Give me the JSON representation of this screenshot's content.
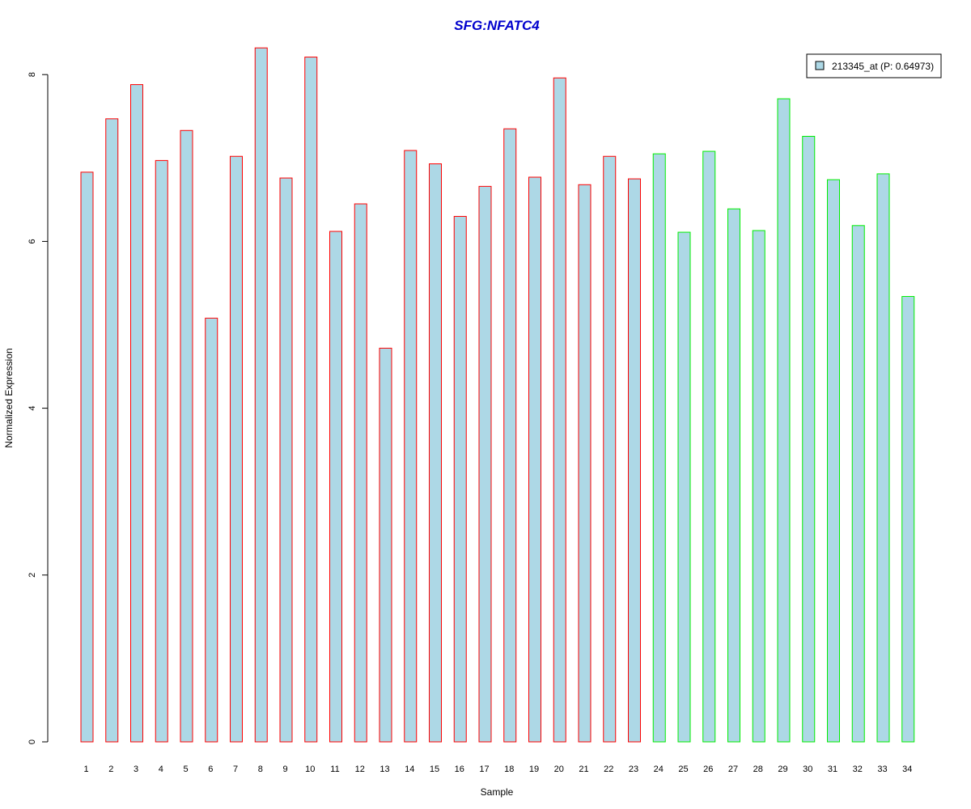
{
  "chart_data": {
    "type": "bar",
    "title": "SFG:NFATC4",
    "xlabel": "Sample",
    "ylabel": "Normalized Expression",
    "ylim": [
      0,
      8.5
    ],
    "yticks": [
      "0",
      "2",
      "4",
      "6",
      "8"
    ],
    "grid": false,
    "categories": [
      "1",
      "2",
      "3",
      "4",
      "5",
      "6",
      "7",
      "8",
      "9",
      "10",
      "11",
      "12",
      "13",
      "14",
      "15",
      "16",
      "17",
      "18",
      "19",
      "20",
      "21",
      "22",
      "23",
      "24",
      "25",
      "26",
      "27",
      "28",
      "29",
      "30",
      "31",
      "32",
      "33",
      "34"
    ],
    "series": [
      {
        "name": "213345_at (P: 0.64973)",
        "values": [
          6.83,
          7.47,
          7.88,
          6.97,
          7.33,
          5.08,
          7.02,
          8.32,
          6.76,
          8.21,
          6.12,
          6.45,
          4.72,
          7.09,
          6.93,
          6.3,
          6.66,
          7.35,
          6.77,
          7.96,
          6.68,
          7.02,
          6.75,
          7.05,
          6.11,
          7.08,
          6.39,
          6.13,
          7.71,
          7.26,
          6.74,
          6.19,
          6.81,
          5.34
        ]
      }
    ],
    "bar_group": [
      "red",
      "red",
      "red",
      "red",
      "red",
      "red",
      "red",
      "red",
      "red",
      "red",
      "red",
      "red",
      "red",
      "red",
      "red",
      "red",
      "red",
      "red",
      "red",
      "red",
      "red",
      "red",
      "red",
      "green",
      "green",
      "green",
      "green",
      "green",
      "green",
      "green",
      "green",
      "green",
      "green",
      "green"
    ],
    "colors": {
      "fill": "#add8e6",
      "border_group1": "#ff0000",
      "border_group2": "#00ee00",
      "title": "#0000cd"
    },
    "legend": {
      "position": "top-right",
      "label": "213345_at (P: 0.64973)"
    }
  }
}
